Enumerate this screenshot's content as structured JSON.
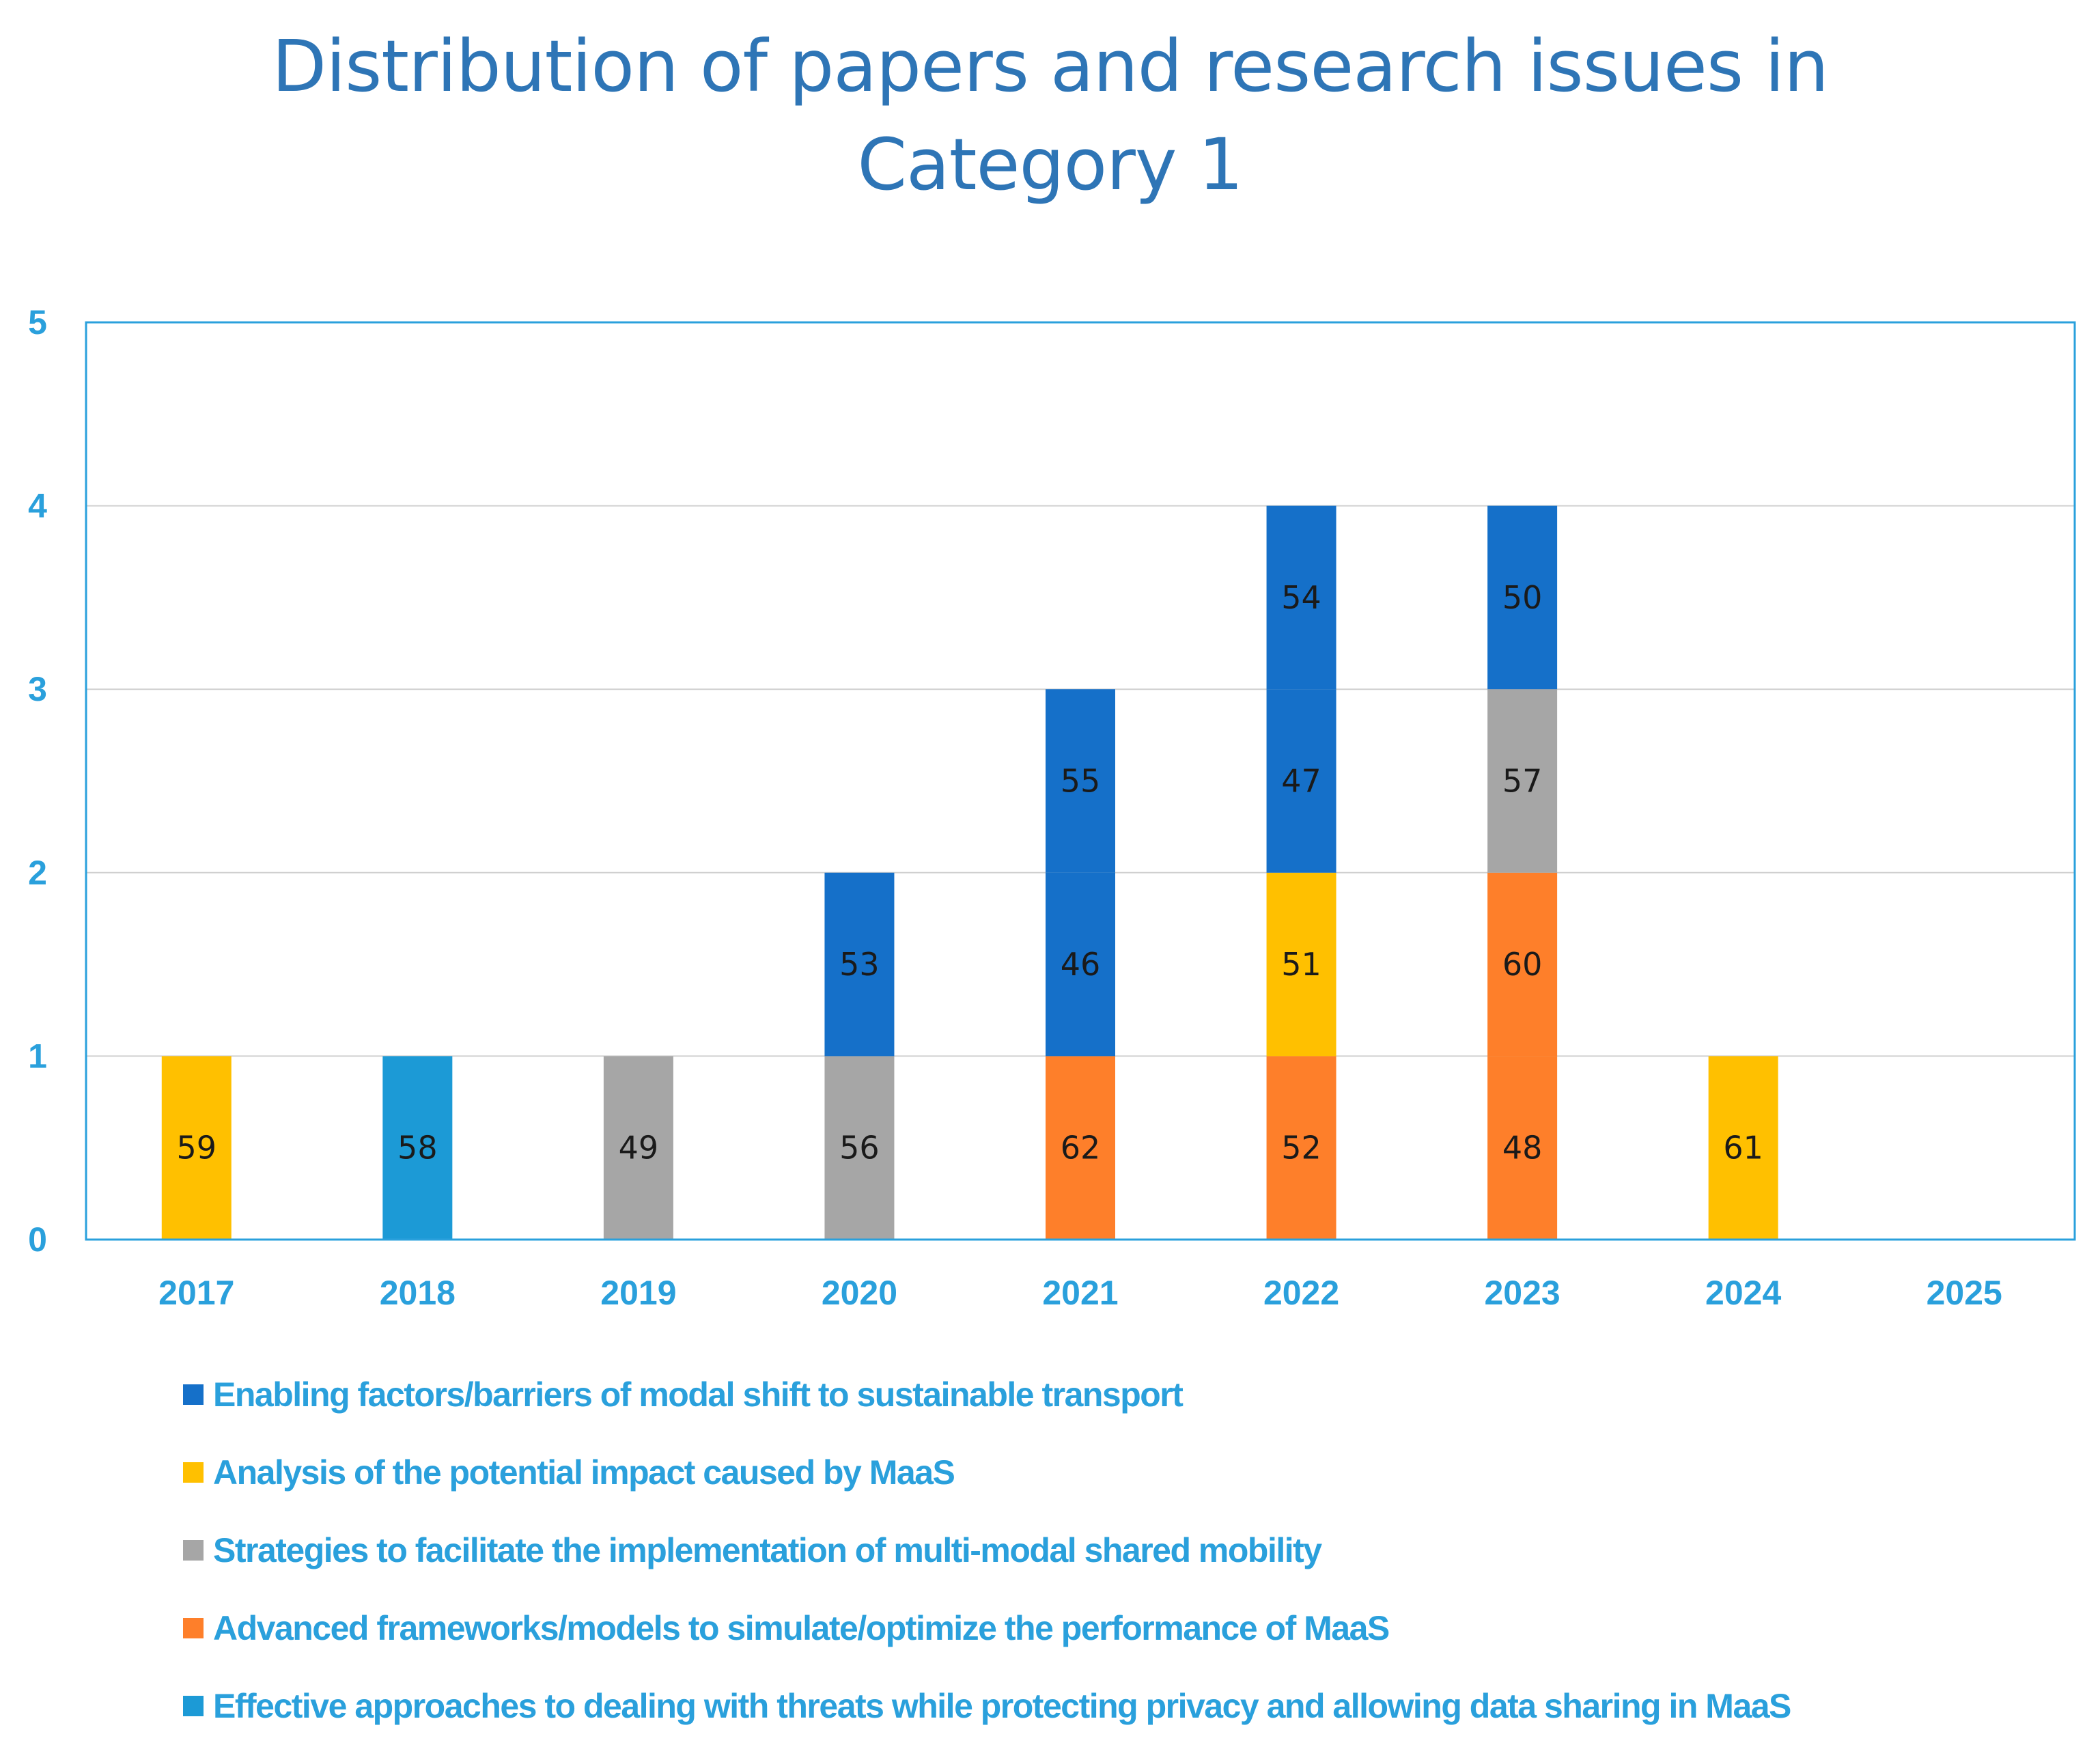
{
  "colors": {
    "title": "#2e75b6",
    "axis_text": "#2aa0dc",
    "frame": "#2aa0dc",
    "grid": "#d0d0d0",
    "bar_label": "#1a1a1a"
  },
  "chart_data": {
    "type": "stacked-bar",
    "title": [
      "Distribution of papers and research issues in",
      "Category 1"
    ],
    "xlabel": "",
    "ylabel": "",
    "ylim": [
      0,
      5
    ],
    "yticks": [
      0,
      1,
      2,
      3,
      4,
      5
    ],
    "grid": true,
    "legend_position": "bottom",
    "categories": [
      "2017",
      "2018",
      "2019",
      "2020",
      "2021",
      "2022",
      "2023",
      "2024",
      "2025"
    ],
    "series": [
      {
        "name": "Advanced frameworks/models to simulate/optimize the performance of MaaS",
        "color": "#fe7f2a"
      },
      {
        "name": "Analysis of the potential impact caused by MaaS",
        "color": "#ffc000"
      },
      {
        "name": "Strategies to facilitate the implementation of multi-modal shared mobility",
        "color": "#a6a6a6"
      },
      {
        "name": "Effective approaches to dealing with threats while protecting privacy and allowing data sharing in MaaS",
        "color": "#1c9ad6"
      },
      {
        "name": "Enabling factors/barriers of modal shift to sustainable transport",
        "color": "#1570c9"
      }
    ],
    "stacks": [
      {
        "category": "2017",
        "segments": [
          {
            "series": "Analysis of the potential impact caused by MaaS",
            "value": 1,
            "label": "59"
          }
        ]
      },
      {
        "category": "2018",
        "segments": [
          {
            "series": "Effective approaches to dealing with threats while protecting privacy and allowing data sharing in MaaS",
            "value": 1,
            "label": "58"
          }
        ]
      },
      {
        "category": "2019",
        "segments": [
          {
            "series": "Strategies to facilitate the implementation of multi-modal shared mobility",
            "value": 1,
            "label": "49"
          }
        ]
      },
      {
        "category": "2020",
        "segments": [
          {
            "series": "Strategies to facilitate the implementation of multi-modal shared mobility",
            "value": 1,
            "label": "56"
          },
          {
            "series": "Enabling factors/barriers of modal shift to sustainable transport",
            "value": 1,
            "label": "53"
          }
        ]
      },
      {
        "category": "2021",
        "segments": [
          {
            "series": "Advanced frameworks/models to simulate/optimize the performance of MaaS",
            "value": 1,
            "label": "62"
          },
          {
            "series": "Enabling factors/barriers of modal shift to sustainable transport",
            "value": 1,
            "label": "46"
          },
          {
            "series": "Enabling factors/barriers of modal shift to sustainable transport",
            "value": 1,
            "label": "55"
          }
        ]
      },
      {
        "category": "2022",
        "segments": [
          {
            "series": "Advanced frameworks/models to simulate/optimize the performance of MaaS",
            "value": 1,
            "label": "52"
          },
          {
            "series": "Analysis of the potential impact caused by MaaS",
            "value": 1,
            "label": "51"
          },
          {
            "series": "Enabling factors/barriers of modal shift to sustainable transport",
            "value": 1,
            "label": "47"
          },
          {
            "series": "Enabling factors/barriers of modal shift to sustainable transport",
            "value": 1,
            "label": "54"
          }
        ]
      },
      {
        "category": "2023",
        "segments": [
          {
            "series": "Advanced frameworks/models to simulate/optimize the performance of MaaS",
            "value": 1,
            "label": "48"
          },
          {
            "series": "Advanced frameworks/models to simulate/optimize the performance of MaaS",
            "value": 1,
            "label": "60"
          },
          {
            "series": "Strategies to facilitate the implementation of multi-modal shared mobility",
            "value": 1,
            "label": "57"
          },
          {
            "series": "Enabling factors/barriers of modal shift to sustainable transport",
            "value": 1,
            "label": "50"
          }
        ]
      },
      {
        "category": "2024",
        "segments": [
          {
            "series": "Analysis of the potential impact caused by MaaS",
            "value": 1,
            "label": "61"
          }
        ]
      },
      {
        "category": "2025",
        "segments": []
      }
    ],
    "legend": [
      {
        "label": "Enabling factors/barriers of modal shift to sustainable transport",
        "color": "#1570c9"
      },
      {
        "label": "Analysis of the potential impact caused by MaaS",
        "color": "#ffc000"
      },
      {
        "label": "Strategies to facilitate the implementation of multi-modal shared mobility",
        "color": "#a6a6a6"
      },
      {
        "label": "Advanced frameworks/models to simulate/optimize the performance of MaaS",
        "color": "#fe7f2a"
      },
      {
        "label": "Effective approaches to dealing with threats while protecting privacy and allowing data sharing in MaaS",
        "color": "#1c9ad6"
      }
    ]
  }
}
